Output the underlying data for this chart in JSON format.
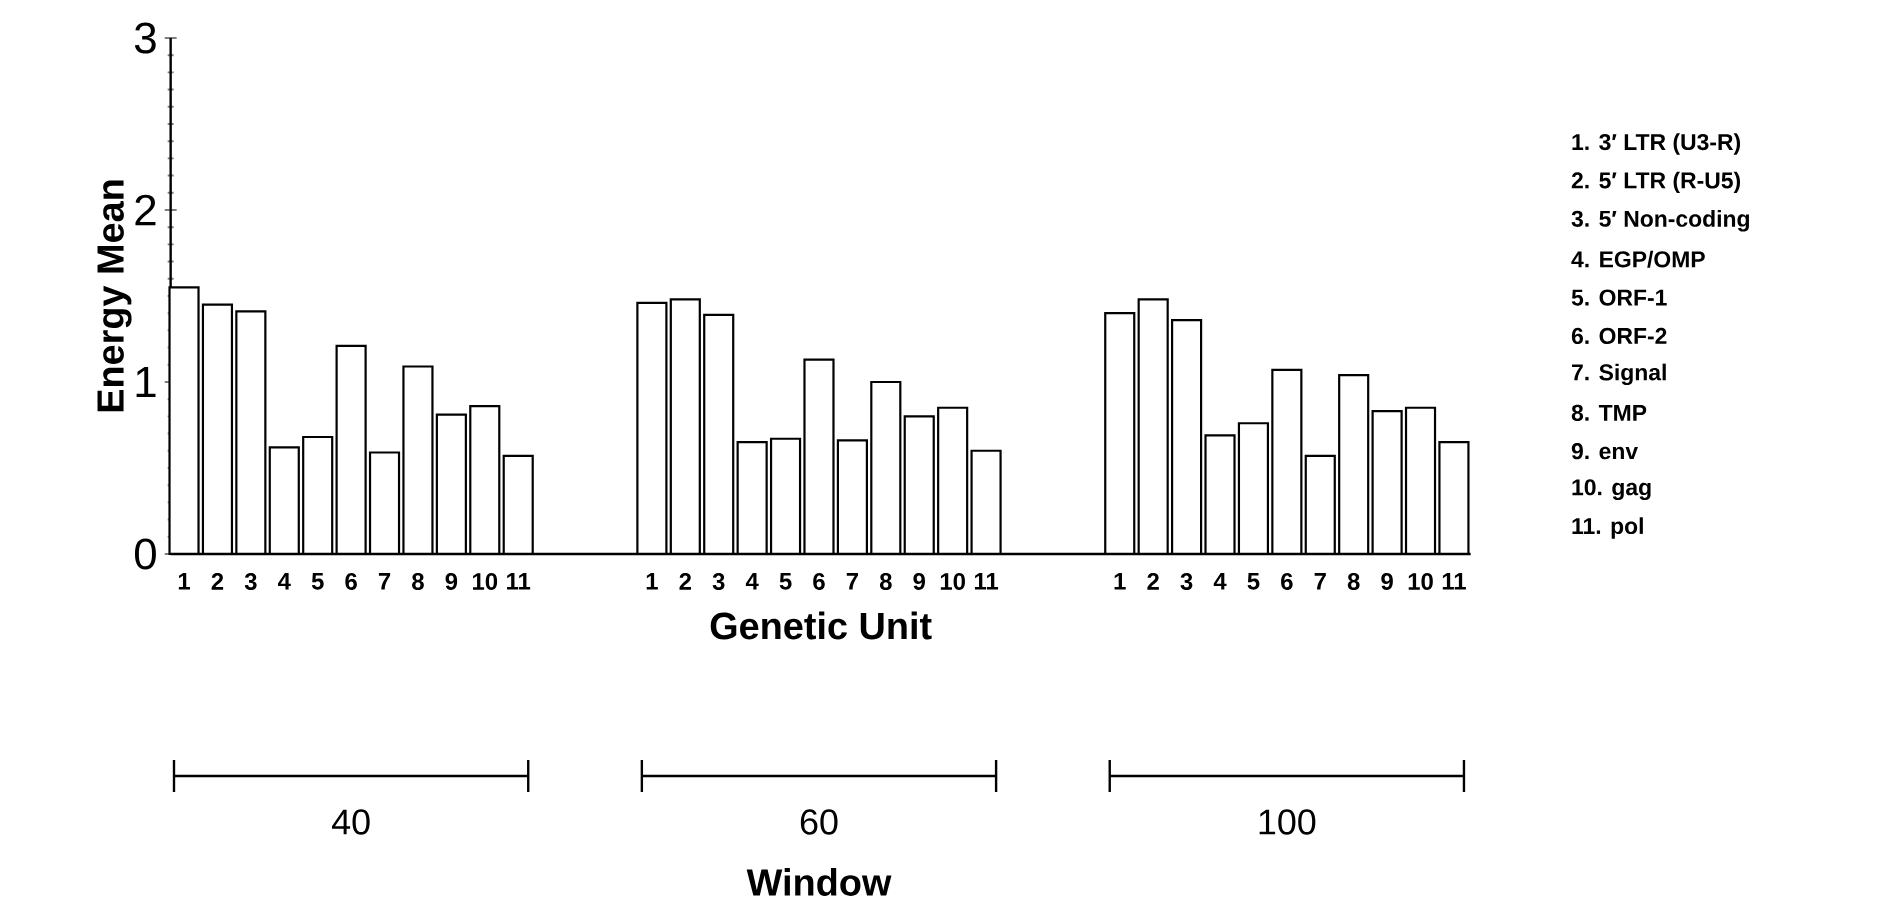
{
  "chart_data": {
    "type": "bar",
    "xlabel": "Genetic Unit",
    "ylabel": "Energy Mean",
    "categories": [
      "1",
      "2",
      "3",
      "4",
      "5",
      "6",
      "7",
      "8",
      "9",
      "10",
      "11",
      null,
      null,
      null,
      "1",
      "2",
      "3",
      "4",
      "5",
      "6",
      "7",
      "8",
      "9",
      "10",
      "11",
      null,
      null,
      null,
      "1",
      "2",
      "3",
      "4",
      "5",
      "6",
      "7",
      "8",
      "9",
      "10",
      "11"
    ],
    "values": [
      1.55,
      1.45,
      1.41,
      0.62,
      0.68,
      1.21,
      0.59,
      1.09,
      0.81,
      0.86,
      0.57,
      null,
      null,
      null,
      1.46,
      1.48,
      1.39,
      0.65,
      0.67,
      1.13,
      0.66,
      1.0,
      0.8,
      0.85,
      0.6,
      null,
      null,
      null,
      1.4,
      1.48,
      1.36,
      0.69,
      0.76,
      1.07,
      0.57,
      1.04,
      0.83,
      0.85,
      0.65
    ],
    "color": "#000000",
    "ylim": [
      0,
      3
    ],
    "yticks": [
      0,
      1,
      2,
      3
    ],
    "grid": false,
    "annotations": [
      "1.  3′ LTR (U3-R)",
      "2.  5′ LTR (R-U5)",
      "3.  5′ Non-coding",
      "4.  EGP/OMP",
      "5.  ORF-1",
      "6.  ORF-2",
      "7.  Signal",
      "8.  TMP",
      "9.  env",
      "10.  gag",
      "11.  pol",
      "40",
      "60",
      "100",
      "Window"
    ]
  }
}
